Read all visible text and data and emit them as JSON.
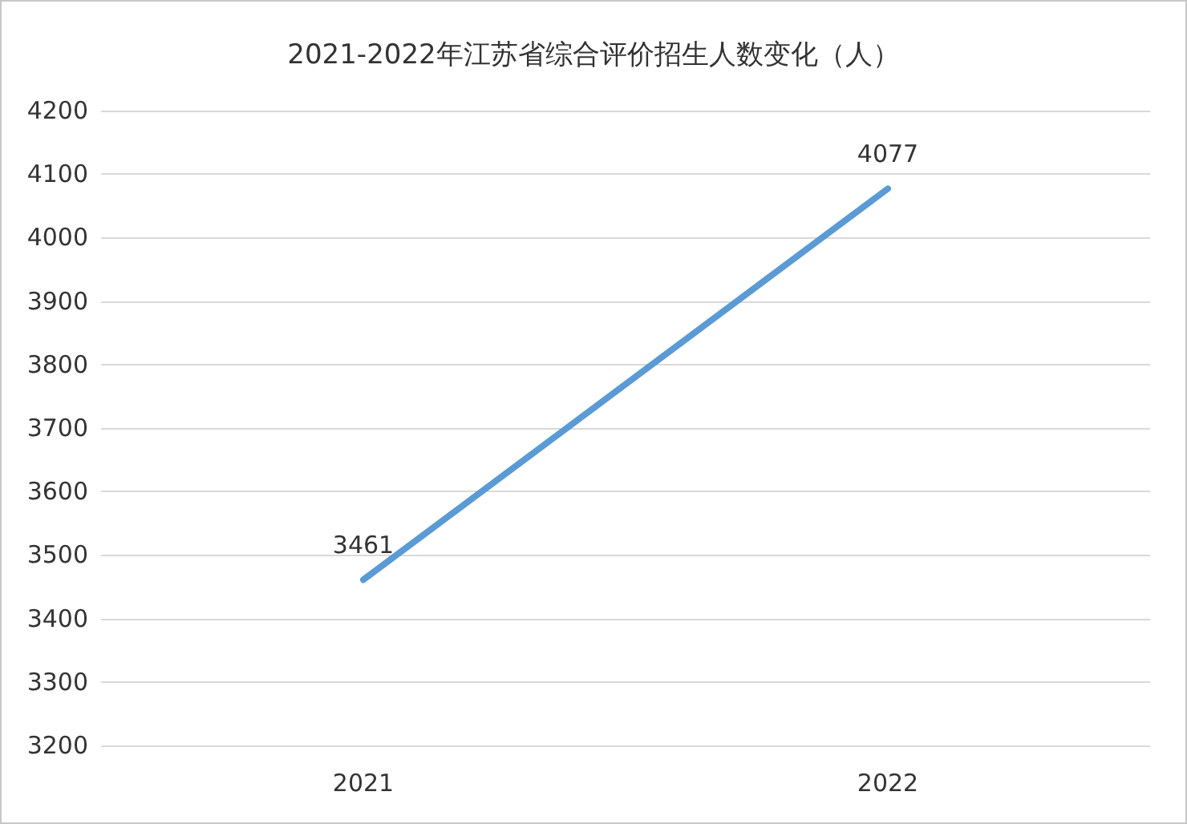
{
  "chart_data": {
    "type": "line",
    "title": "2021-2022年江苏省综合评价招生人数变化（人）",
    "categories": [
      "2021",
      "2022"
    ],
    "series": [
      {
        "color": "#5b9bd5",
        "values": [
          3461,
          4077
        ]
      }
    ],
    "ylim": [
      3200,
      4200
    ],
    "yticks": [
      3200,
      3300,
      3400,
      3500,
      3600,
      3700,
      3800,
      3900,
      4000,
      4100,
      4200
    ],
    "grid": "y",
    "data_labels": true,
    "marker": "none",
    "line_style": "solid"
  }
}
